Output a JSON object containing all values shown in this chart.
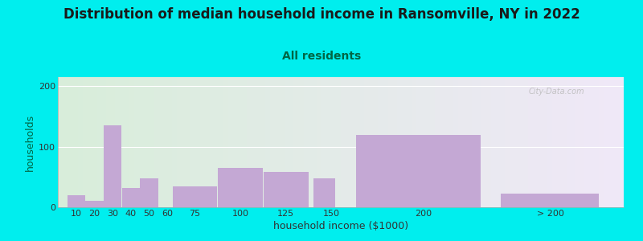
{
  "title": "Distribution of median household income in Ransomville, NY in 2022",
  "subtitle": "All residents",
  "xlabel": "household income ($1000)",
  "ylabel": "households",
  "background_color": "#00EEEE",
  "bar_color": "#c4a8d4",
  "watermark": "City-Data.com",
  "categories": [
    "10",
    "20",
    "30",
    "40",
    "50",
    "60",
    "75",
    "100",
    "125",
    "150",
    "200",
    "> 200"
  ],
  "values": [
    20,
    10,
    135,
    32,
    48,
    0,
    35,
    65,
    58,
    48,
    120,
    22
  ],
  "bar_lefts": [
    5,
    15,
    25,
    35,
    45,
    55,
    62.5,
    87.5,
    112.5,
    140,
    162.5,
    242
  ],
  "bar_widths": [
    10,
    10,
    10,
    10,
    10,
    7,
    25,
    25,
    25,
    12,
    70,
    55
  ],
  "xtick_positions": [
    10,
    20,
    30,
    40,
    50,
    60,
    75,
    100,
    125,
    150,
    200,
    270
  ],
  "xlim": [
    0,
    310
  ],
  "ylim": [
    0,
    215
  ],
  "yticks": [
    0,
    100,
    200
  ],
  "title_fontsize": 12,
  "subtitle_fontsize": 10,
  "xlabel_fontsize": 9,
  "ylabel_fontsize": 9,
  "tick_fontsize": 8,
  "title_color": "#1a1a1a",
  "subtitle_color": "#006644",
  "ylabel_color": "#006644",
  "xlabel_color": "#333333"
}
